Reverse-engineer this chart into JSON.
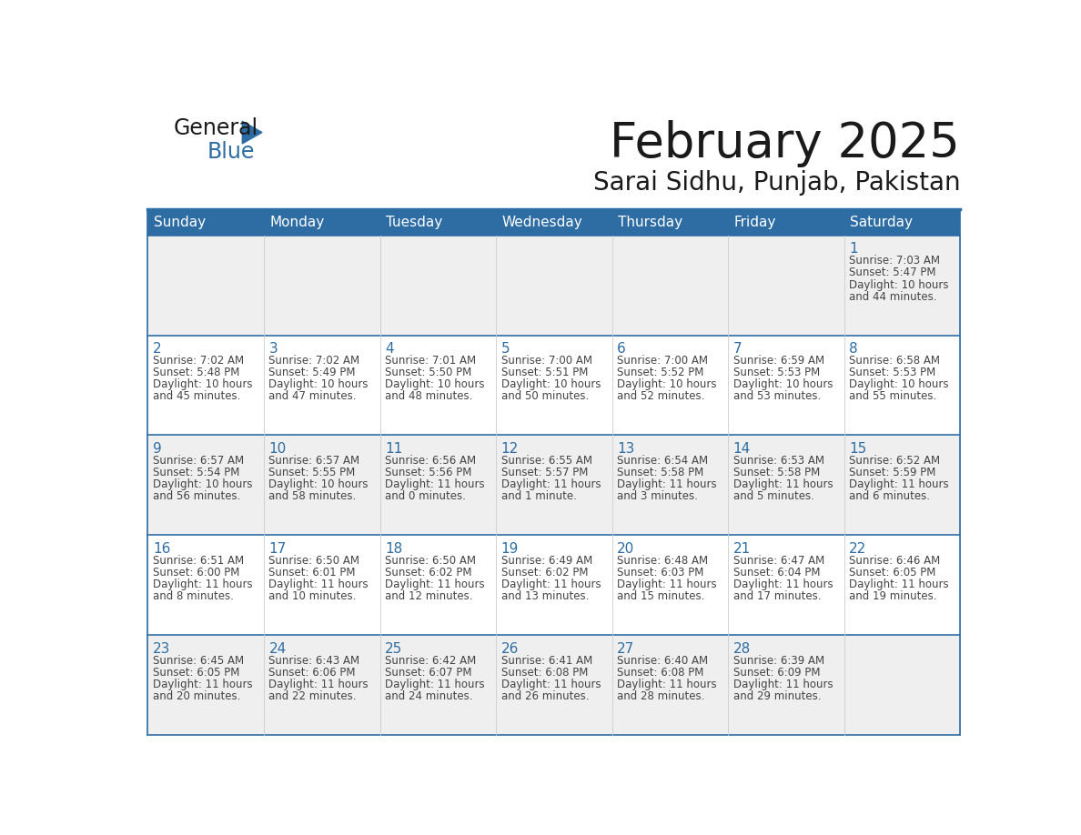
{
  "title": "February 2025",
  "subtitle": "Sarai Sidhu, Punjab, Pakistan",
  "header_bg": "#2E6DA4",
  "header_text_color": "#FFFFFF",
  "days_of_week": [
    "Sunday",
    "Monday",
    "Tuesday",
    "Wednesday",
    "Thursday",
    "Friday",
    "Saturday"
  ],
  "row_bg_odd": "#EFEFEF",
  "row_bg_even": "#FFFFFF",
  "cell_border_color": "#2E6DA4",
  "day_number_color": "#2E6DA4",
  "info_text_color": "#444444",
  "title_fontsize": 38,
  "subtitle_fontsize": 20,
  "header_fontsize": 11,
  "day_num_fontsize": 11,
  "cell_text_fontsize": 8.5,
  "calendar_data": [
    [
      null,
      null,
      null,
      null,
      null,
      null,
      {
        "day": "1",
        "sunrise": "7:03 AM",
        "sunset": "5:47 PM",
        "daylight_line1": "Daylight: 10 hours",
        "daylight_line2": "and 44 minutes."
      }
    ],
    [
      {
        "day": "2",
        "sunrise": "7:02 AM",
        "sunset": "5:48 PM",
        "daylight_line1": "Daylight: 10 hours",
        "daylight_line2": "and 45 minutes."
      },
      {
        "day": "3",
        "sunrise": "7:02 AM",
        "sunset": "5:49 PM",
        "daylight_line1": "Daylight: 10 hours",
        "daylight_line2": "and 47 minutes."
      },
      {
        "day": "4",
        "sunrise": "7:01 AM",
        "sunset": "5:50 PM",
        "daylight_line1": "Daylight: 10 hours",
        "daylight_line2": "and 48 minutes."
      },
      {
        "day": "5",
        "sunrise": "7:00 AM",
        "sunset": "5:51 PM",
        "daylight_line1": "Daylight: 10 hours",
        "daylight_line2": "and 50 minutes."
      },
      {
        "day": "6",
        "sunrise": "7:00 AM",
        "sunset": "5:52 PM",
        "daylight_line1": "Daylight: 10 hours",
        "daylight_line2": "and 52 minutes."
      },
      {
        "day": "7",
        "sunrise": "6:59 AM",
        "sunset": "5:53 PM",
        "daylight_line1": "Daylight: 10 hours",
        "daylight_line2": "and 53 minutes."
      },
      {
        "day": "8",
        "sunrise": "6:58 AM",
        "sunset": "5:53 PM",
        "daylight_line1": "Daylight: 10 hours",
        "daylight_line2": "and 55 minutes."
      }
    ],
    [
      {
        "day": "9",
        "sunrise": "6:57 AM",
        "sunset": "5:54 PM",
        "daylight_line1": "Daylight: 10 hours",
        "daylight_line2": "and 56 minutes."
      },
      {
        "day": "10",
        "sunrise": "6:57 AM",
        "sunset": "5:55 PM",
        "daylight_line1": "Daylight: 10 hours",
        "daylight_line2": "and 58 minutes."
      },
      {
        "day": "11",
        "sunrise": "6:56 AM",
        "sunset": "5:56 PM",
        "daylight_line1": "Daylight: 11 hours",
        "daylight_line2": "and 0 minutes."
      },
      {
        "day": "12",
        "sunrise": "6:55 AM",
        "sunset": "5:57 PM",
        "daylight_line1": "Daylight: 11 hours",
        "daylight_line2": "and 1 minute."
      },
      {
        "day": "13",
        "sunrise": "6:54 AM",
        "sunset": "5:58 PM",
        "daylight_line1": "Daylight: 11 hours",
        "daylight_line2": "and 3 minutes."
      },
      {
        "day": "14",
        "sunrise": "6:53 AM",
        "sunset": "5:58 PM",
        "daylight_line1": "Daylight: 11 hours",
        "daylight_line2": "and 5 minutes."
      },
      {
        "day": "15",
        "sunrise": "6:52 AM",
        "sunset": "5:59 PM",
        "daylight_line1": "Daylight: 11 hours",
        "daylight_line2": "and 6 minutes."
      }
    ],
    [
      {
        "day": "16",
        "sunrise": "6:51 AM",
        "sunset": "6:00 PM",
        "daylight_line1": "Daylight: 11 hours",
        "daylight_line2": "and 8 minutes."
      },
      {
        "day": "17",
        "sunrise": "6:50 AM",
        "sunset": "6:01 PM",
        "daylight_line1": "Daylight: 11 hours",
        "daylight_line2": "and 10 minutes."
      },
      {
        "day": "18",
        "sunrise": "6:50 AM",
        "sunset": "6:02 PM",
        "daylight_line1": "Daylight: 11 hours",
        "daylight_line2": "and 12 minutes."
      },
      {
        "day": "19",
        "sunrise": "6:49 AM",
        "sunset": "6:02 PM",
        "daylight_line1": "Daylight: 11 hours",
        "daylight_line2": "and 13 minutes."
      },
      {
        "day": "20",
        "sunrise": "6:48 AM",
        "sunset": "6:03 PM",
        "daylight_line1": "Daylight: 11 hours",
        "daylight_line2": "and 15 minutes."
      },
      {
        "day": "21",
        "sunrise": "6:47 AM",
        "sunset": "6:04 PM",
        "daylight_line1": "Daylight: 11 hours",
        "daylight_line2": "and 17 minutes."
      },
      {
        "day": "22",
        "sunrise": "6:46 AM",
        "sunset": "6:05 PM",
        "daylight_line1": "Daylight: 11 hours",
        "daylight_line2": "and 19 minutes."
      }
    ],
    [
      {
        "day": "23",
        "sunrise": "6:45 AM",
        "sunset": "6:05 PM",
        "daylight_line1": "Daylight: 11 hours",
        "daylight_line2": "and 20 minutes."
      },
      {
        "day": "24",
        "sunrise": "6:43 AM",
        "sunset": "6:06 PM",
        "daylight_line1": "Daylight: 11 hours",
        "daylight_line2": "and 22 minutes."
      },
      {
        "day": "25",
        "sunrise": "6:42 AM",
        "sunset": "6:07 PM",
        "daylight_line1": "Daylight: 11 hours",
        "daylight_line2": "and 24 minutes."
      },
      {
        "day": "26",
        "sunrise": "6:41 AM",
        "sunset": "6:08 PM",
        "daylight_line1": "Daylight: 11 hours",
        "daylight_line2": "and 26 minutes."
      },
      {
        "day": "27",
        "sunrise": "6:40 AM",
        "sunset": "6:08 PM",
        "daylight_line1": "Daylight: 11 hours",
        "daylight_line2": "and 28 minutes."
      },
      {
        "day": "28",
        "sunrise": "6:39 AM",
        "sunset": "6:09 PM",
        "daylight_line1": "Daylight: 11 hours",
        "daylight_line2": "and 29 minutes."
      },
      null
    ]
  ]
}
